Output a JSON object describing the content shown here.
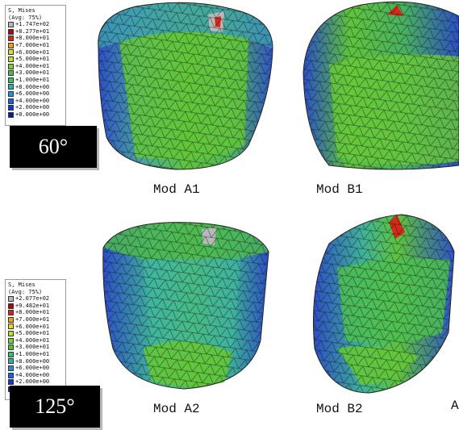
{
  "figure": {
    "legend_1": {
      "title_1": "S, Mises",
      "title_2": "(Avg: 75%)",
      "levels": [
        "+1.747e+02",
        "+8.277e+01",
        "+8.000e+01",
        "+7.000e+01",
        "+6.000e+01",
        "+5.000e+01",
        "+4.000e+01",
        "+3.000e+01",
        "+1.000e+01",
        "+8.000e+00",
        "+6.000e+00",
        "+4.000e+00",
        "+2.000e+00",
        "+0.000e+00"
      ]
    },
    "legend_2": {
      "title_1": "S, Mises",
      "title_2": "(Avg: 75%)",
      "levels": [
        "+2.077e+02",
        "+9.482e+01",
        "+8.000e+01",
        "+7.000e+01",
        "+6.000e+01",
        "+5.000e+01",
        "+4.000e+01",
        "+3.000e+01",
        "+1.000e+01",
        "+8.000e+00",
        "+6.000e+00",
        "+4.000e+00",
        "+2.000e+00",
        "+0.000e+00"
      ]
    },
    "legend_colors": [
      "#b8b8b8",
      "#9a1010",
      "#d8241a",
      "#e8a020",
      "#e8d82a",
      "#b8e030",
      "#7ad030",
      "#4cc040",
      "#38c070",
      "#30b0a0",
      "#2890d0",
      "#1c60e0",
      "#1438c8",
      "#0a18a8"
    ],
    "angle_1": "60°",
    "angle_2": "125°",
    "captions": {
      "a1": "Mod A1",
      "b1": "Mod B1",
      "a2": "Mod A2",
      "b2": "Mod B2",
      "edge": "A"
    },
    "colors": {
      "mesh_blue": "#2c4fc4",
      "mesh_teal": "#3fb29a",
      "mesh_green": "#5cc23e",
      "hot_red": "#d52a1a",
      "hot_gray": "#b9b9b9"
    }
  }
}
